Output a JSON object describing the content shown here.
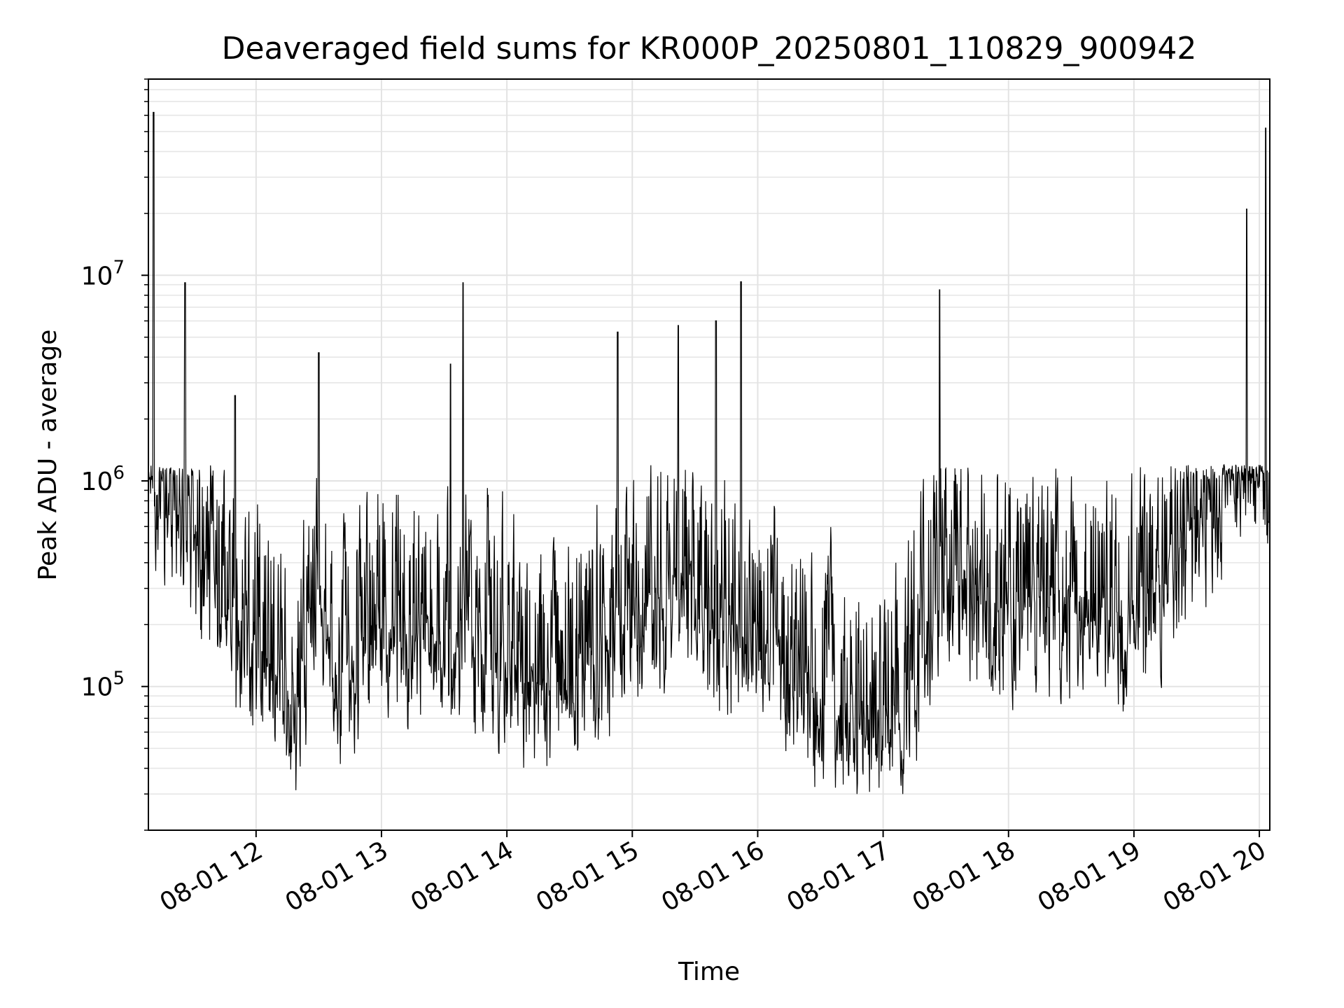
{
  "chart_data": {
    "type": "line",
    "title": "Deaveraged field sums for KR000P_20250801_110829_900942",
    "xlabel": "Time",
    "ylabel": "Peak ADU - average",
    "x_scale": "time",
    "y_scale": "log",
    "xlim": [
      "2025-08-01 11:08:29",
      "2025-08-01 20:05:00"
    ],
    "ylim": [
      20000,
      90000000
    ],
    "x_ticks": [
      "08-01 12",
      "08-01 13",
      "08-01 14",
      "08-01 15",
      "08-01 16",
      "08-01 17",
      "08-01 18",
      "08-01 19",
      "08-01 20"
    ],
    "y_ticks": [
      {
        "base": "10",
        "exp": "5",
        "value": 100000
      },
      {
        "base": "10",
        "exp": "6",
        "value": 1000000
      },
      {
        "base": "10",
        "exp": "7",
        "value": 10000000
      }
    ],
    "grid": true,
    "legend": "none",
    "line_color": "#000000",
    "series": [
      {
        "x": [
          "11:09",
          "11:15",
          "11:25",
          "11:40",
          "12:00",
          "12:20",
          "12:30",
          "12:40",
          "13:00",
          "13:20",
          "13:40",
          "14:00",
          "14:20",
          "14:40",
          "15:00",
          "15:20",
          "15:40",
          "16:00",
          "16:20",
          "16:40",
          "16:55",
          "17:10",
          "17:30",
          "17:50",
          "18:10",
          "18:30",
          "18:50",
          "19:10",
          "19:30",
          "19:50",
          "20:05"
        ],
        "y": [
          1500000,
          800000,
          700000,
          220000,
          180000,
          65000,
          300000,
          90000,
          210000,
          140000,
          160000,
          120000,
          75000,
          120000,
          210000,
          300000,
          180000,
          150000,
          95000,
          75000,
          62000,
          70000,
          380000,
          240000,
          200000,
          210000,
          200000,
          220000,
          600000,
          1200000,
          1100000
        ]
      }
    ],
    "spikes": [
      {
        "x": "11:11",
        "y": 62000000
      },
      {
        "x": "11:26",
        "y": 9200000
      },
      {
        "x": "11:50",
        "y": 2600000
      },
      {
        "x": "12:30",
        "y": 4200000
      },
      {
        "x": "13:33",
        "y": 3700000
      },
      {
        "x": "13:39",
        "y": 9200000
      },
      {
        "x": "14:53",
        "y": 5300000
      },
      {
        "x": "15:22",
        "y": 5700000
      },
      {
        "x": "15:40",
        "y": 6000000
      },
      {
        "x": "15:52",
        "y": 9300000
      },
      {
        "x": "17:27",
        "y": 8500000
      },
      {
        "x": "19:54",
        "y": 21000000
      },
      {
        "x": "20:03",
        "y": 52000000
      }
    ]
  }
}
